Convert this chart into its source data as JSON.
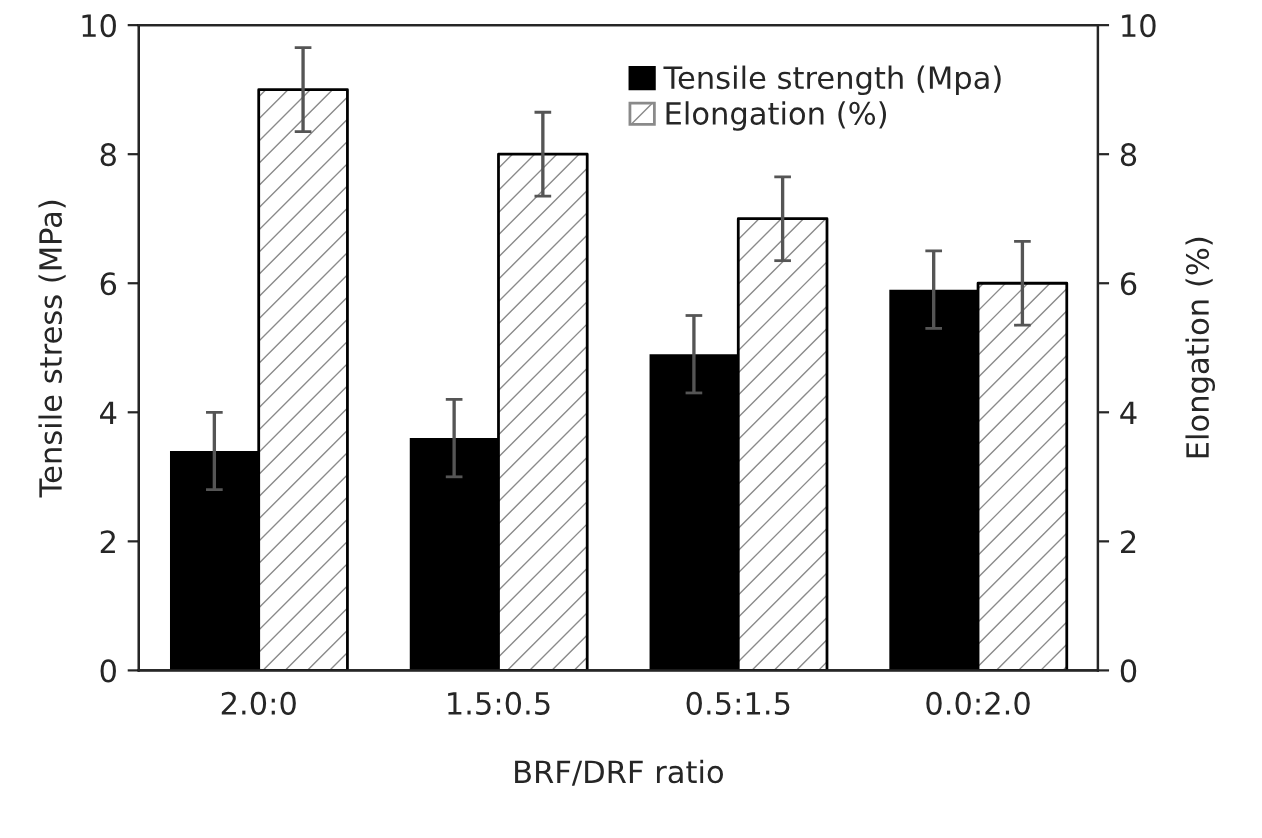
{
  "chart_data": {
    "type": "bar",
    "xlabel": "BRF/DRF ratio",
    "ylabel": "Tensile stress (MPa)",
    "y2label": "Elongation (%)",
    "categories": [
      "2.0:0",
      "1.5:0.5",
      "0.5:1.5",
      "0.0:2.0"
    ],
    "series": [
      {
        "name": "Tensile strength (Mpa)",
        "color": "#000000",
        "values": [
          3.4,
          3.6,
          4.9,
          5.9
        ],
        "errors": [
          0.6,
          0.6,
          0.6,
          0.6
        ]
      },
      {
        "name": "Elongation (%)",
        "color": "#ffffff",
        "axis": "y2",
        "values": [
          9.0,
          8.0,
          7.0,
          6.0
        ],
        "errors": [
          0.65,
          0.65,
          0.65,
          0.65
        ]
      }
    ],
    "ylim": [
      0,
      10
    ],
    "yticks": [
      0,
      2,
      4,
      6,
      8,
      10
    ],
    "y2lim": [
      0,
      10
    ],
    "y2ticks": [
      0,
      2,
      4,
      6,
      8,
      10
    ],
    "legend": "top right",
    "grid": false
  }
}
